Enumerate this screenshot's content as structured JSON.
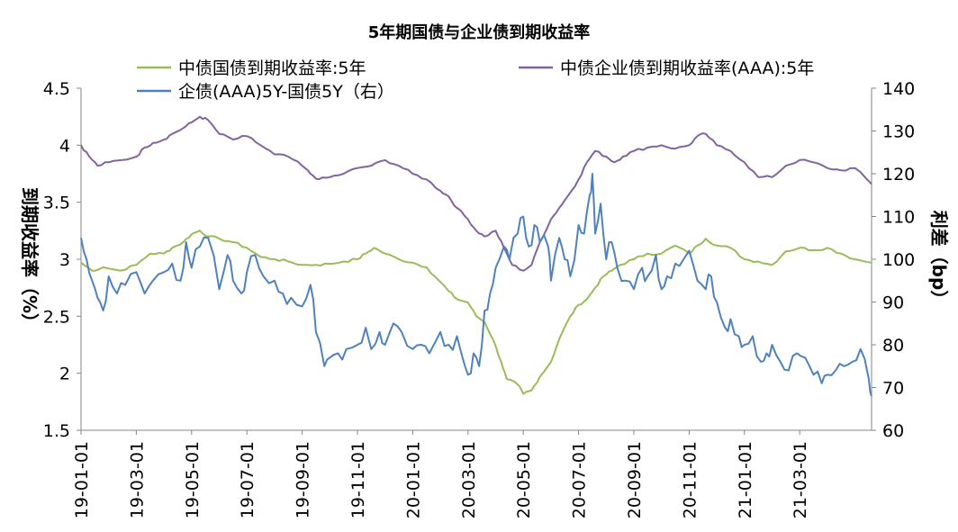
{
  "chart_data": {
    "type": "line",
    "title": "5年期国债与企业债到期收益率",
    "y_left_label": "到期收益率（%）",
    "y_right_label": "利差（bp）",
    "y_left_lim": [
      1.5,
      4.5
    ],
    "y_left_ticks": [
      "1.5",
      "2",
      "2.5",
      "3",
      "3.5",
      "4",
      "4.5"
    ],
    "y_right_lim": [
      60,
      140
    ],
    "y_right_ticks": [
      "60",
      "70",
      "80",
      "90",
      "100",
      "110",
      "120",
      "130",
      "140"
    ],
    "x_ticks": [
      "19-01-01",
      "19-03-01",
      "19-05-01",
      "19-07-01",
      "19-09-01",
      "19-11-01",
      "20-01-01",
      "20-03-01",
      "20-05-01",
      "20-07-01",
      "20-09-01",
      "20-11-01",
      "21-01-01",
      "21-03-01"
    ],
    "x_range_months": [
      0,
      28.6
    ],
    "series": [
      {
        "name": "中债国债到期收益率:5年",
        "axis": "left",
        "color": "#9BBB59",
        "points": [
          [
            0.0,
            2.97
          ],
          [
            0.4,
            2.9
          ],
          [
            0.8,
            2.93
          ],
          [
            1.4,
            2.9
          ],
          [
            2.0,
            2.95
          ],
          [
            2.5,
            3.05
          ],
          [
            3.0,
            3.05
          ],
          [
            3.3,
            3.1
          ],
          [
            3.7,
            3.15
          ],
          [
            4.0,
            3.22
          ],
          [
            4.3,
            3.25
          ],
          [
            4.6,
            3.2
          ],
          [
            5.0,
            3.18
          ],
          [
            5.5,
            3.15
          ],
          [
            6.0,
            3.1
          ],
          [
            6.5,
            3.02
          ],
          [
            7.0,
            3.0
          ],
          [
            7.5,
            2.98
          ],
          [
            8.0,
            2.95
          ],
          [
            8.5,
            2.95
          ],
          [
            9.0,
            2.96
          ],
          [
            9.5,
            2.98
          ],
          [
            10.0,
            3.0
          ],
          [
            10.3,
            3.05
          ],
          [
            10.6,
            3.1
          ],
          [
            11.0,
            3.05
          ],
          [
            11.5,
            3.0
          ],
          [
            12.0,
            2.97
          ],
          [
            12.5,
            2.93
          ],
          [
            13.0,
            2.8
          ],
          [
            13.3,
            2.72
          ],
          [
            13.6,
            2.65
          ],
          [
            14.0,
            2.62
          ],
          [
            14.3,
            2.5
          ],
          [
            14.6,
            2.45
          ],
          [
            14.9,
            2.3
          ],
          [
            15.2,
            2.1
          ],
          [
            15.4,
            1.95
          ],
          [
            15.8,
            1.9
          ],
          [
            16.0,
            1.82
          ],
          [
            16.3,
            1.85
          ],
          [
            16.6,
            1.97
          ],
          [
            17.0,
            2.1
          ],
          [
            17.3,
            2.3
          ],
          [
            17.7,
            2.5
          ],
          [
            18.0,
            2.6
          ],
          [
            18.3,
            2.65
          ],
          [
            18.6,
            2.75
          ],
          [
            18.9,
            2.85
          ],
          [
            19.2,
            2.9
          ],
          [
            19.5,
            2.95
          ],
          [
            20.0,
            3.0
          ],
          [
            20.5,
            3.05
          ],
          [
            21.0,
            3.05
          ],
          [
            21.5,
            3.12
          ],
          [
            22.0,
            3.05
          ],
          [
            22.3,
            3.12
          ],
          [
            22.6,
            3.18
          ],
          [
            23.0,
            3.12
          ],
          [
            23.5,
            3.1
          ],
          [
            24.0,
            3.0
          ],
          [
            24.5,
            2.98
          ],
          [
            25.0,
            2.95
          ],
          [
            25.5,
            3.07
          ],
          [
            26.0,
            3.1
          ],
          [
            26.5,
            3.08
          ],
          [
            27.0,
            3.1
          ],
          [
            27.5,
            3.05
          ],
          [
            28.0,
            3.0
          ],
          [
            28.6,
            2.97
          ]
        ]
      },
      {
        "name": "中债企业债到期收益率(AAA):5年",
        "axis": "left",
        "color": "#8064A2",
        "points": [
          [
            0.0,
            4.0
          ],
          [
            0.3,
            3.9
          ],
          [
            0.6,
            3.82
          ],
          [
            1.0,
            3.85
          ],
          [
            1.5,
            3.87
          ],
          [
            2.0,
            3.9
          ],
          [
            2.3,
            3.98
          ],
          [
            2.6,
            4.02
          ],
          [
            3.0,
            4.05
          ],
          [
            3.3,
            4.1
          ],
          [
            3.7,
            4.15
          ],
          [
            4.0,
            4.2
          ],
          [
            4.3,
            4.25
          ],
          [
            4.6,
            4.22
          ],
          [
            5.0,
            4.1
          ],
          [
            5.5,
            4.05
          ],
          [
            6.0,
            4.08
          ],
          [
            6.5,
            4.0
          ],
          [
            7.0,
            3.92
          ],
          [
            7.5,
            3.9
          ],
          [
            8.0,
            3.82
          ],
          [
            8.3,
            3.75
          ],
          [
            8.6,
            3.7
          ],
          [
            9.0,
            3.72
          ],
          [
            9.5,
            3.75
          ],
          [
            10.0,
            3.8
          ],
          [
            10.5,
            3.82
          ],
          [
            11.0,
            3.87
          ],
          [
            11.5,
            3.82
          ],
          [
            12.0,
            3.75
          ],
          [
            12.5,
            3.7
          ],
          [
            13.0,
            3.6
          ],
          [
            13.3,
            3.55
          ],
          [
            13.6,
            3.45
          ],
          [
            14.0,
            3.35
          ],
          [
            14.3,
            3.25
          ],
          [
            14.6,
            3.2
          ],
          [
            15.0,
            3.25
          ],
          [
            15.3,
            3.1
          ],
          [
            15.6,
            2.95
          ],
          [
            16.0,
            2.9
          ],
          [
            16.3,
            2.95
          ],
          [
            16.6,
            3.15
          ],
          [
            17.0,
            3.35
          ],
          [
            17.3,
            3.45
          ],
          [
            17.6,
            3.55
          ],
          [
            18.0,
            3.7
          ],
          [
            18.3,
            3.85
          ],
          [
            18.6,
            3.95
          ],
          [
            19.0,
            3.9
          ],
          [
            19.3,
            3.85
          ],
          [
            19.6,
            3.9
          ],
          [
            20.0,
            3.95
          ],
          [
            20.5,
            3.98
          ],
          [
            21.0,
            4.0
          ],
          [
            21.5,
            3.97
          ],
          [
            22.0,
            4.0
          ],
          [
            22.3,
            4.08
          ],
          [
            22.6,
            4.1
          ],
          [
            23.0,
            4.0
          ],
          [
            23.5,
            3.95
          ],
          [
            24.0,
            3.85
          ],
          [
            24.5,
            3.72
          ],
          [
            25.0,
            3.72
          ],
          [
            25.5,
            3.82
          ],
          [
            26.0,
            3.87
          ],
          [
            26.5,
            3.85
          ],
          [
            27.0,
            3.8
          ],
          [
            27.5,
            3.78
          ],
          [
            28.0,
            3.8
          ],
          [
            28.6,
            3.66
          ]
        ]
      },
      {
        "name": "企债(AAA)5Y-国债5Y（右）",
        "axis": "right",
        "color": "#4F81BD",
        "points": [
          [
            0.0,
            105
          ],
          [
            0.2,
            100
          ],
          [
            0.4,
            95
          ],
          [
            0.6,
            91
          ],
          [
            0.8,
            88
          ],
          [
            1.0,
            96
          ],
          [
            1.3,
            92
          ],
          [
            1.6,
            94
          ],
          [
            2.0,
            97
          ],
          [
            2.3,
            92
          ],
          [
            2.6,
            95
          ],
          [
            3.0,
            97
          ],
          [
            3.3,
            99
          ],
          [
            3.6,
            95
          ],
          [
            3.8,
            104
          ],
          [
            4.0,
            98
          ],
          [
            4.3,
            103
          ],
          [
            4.6,
            105
          ],
          [
            5.0,
            93
          ],
          [
            5.3,
            101
          ],
          [
            5.5,
            95
          ],
          [
            5.8,
            92
          ],
          [
            6.0,
            97
          ],
          [
            6.3,
            101
          ],
          [
            6.6,
            96
          ],
          [
            7.0,
            95
          ],
          [
            7.3,
            92
          ],
          [
            7.6,
            91
          ],
          [
            8.0,
            89
          ],
          [
            8.3,
            94
          ],
          [
            8.5,
            83
          ],
          [
            8.8,
            75
          ],
          [
            9.0,
            77
          ],
          [
            9.3,
            78
          ],
          [
            9.6,
            79
          ],
          [
            10.0,
            80
          ],
          [
            10.3,
            84
          ],
          [
            10.5,
            79
          ],
          [
            10.8,
            83
          ],
          [
            11.0,
            80
          ],
          [
            11.3,
            85
          ],
          [
            11.6,
            83
          ],
          [
            12.0,
            79
          ],
          [
            12.3,
            80
          ],
          [
            12.6,
            78
          ],
          [
            13.0,
            83
          ],
          [
            13.3,
            80
          ],
          [
            13.6,
            82
          ],
          [
            13.8,
            77
          ],
          [
            14.0,
            73
          ],
          [
            14.2,
            78
          ],
          [
            14.4,
            75
          ],
          [
            14.6,
            88
          ],
          [
            14.8,
            92
          ],
          [
            15.0,
            98
          ],
          [
            15.3,
            103
          ],
          [
            15.5,
            100
          ],
          [
            15.8,
            106
          ],
          [
            16.0,
            110
          ],
          [
            16.2,
            103
          ],
          [
            16.4,
            108
          ],
          [
            16.6,
            104
          ],
          [
            16.9,
            103
          ],
          [
            17.0,
            95
          ],
          [
            17.3,
            105
          ],
          [
            17.5,
            100
          ],
          [
            17.7,
            96
          ],
          [
            18.0,
            108
          ],
          [
            18.2,
            106
          ],
          [
            18.4,
            115
          ],
          [
            18.5,
            120
          ],
          [
            18.6,
            106
          ],
          [
            18.8,
            113
          ],
          [
            19.0,
            100
          ],
          [
            19.2,
            104
          ],
          [
            19.4,
            98
          ],
          [
            19.7,
            95
          ],
          [
            20.0,
            93
          ],
          [
            20.3,
            98
          ],
          [
            20.5,
            96
          ],
          [
            20.8,
            101
          ],
          [
            21.0,
            93
          ],
          [
            21.2,
            96
          ],
          [
            21.5,
            99
          ],
          [
            21.8,
            100
          ],
          [
            22.0,
            102
          ],
          [
            22.3,
            95
          ],
          [
            22.6,
            93
          ],
          [
            22.8,
            96
          ],
          [
            23.0,
            90
          ],
          [
            23.3,
            84
          ],
          [
            23.5,
            86
          ],
          [
            23.8,
            82
          ],
          [
            24.0,
            80
          ],
          [
            24.3,
            82
          ],
          [
            24.6,
            76
          ],
          [
            24.8,
            78
          ],
          [
            25.0,
            80
          ],
          [
            25.3,
            76
          ],
          [
            25.6,
            74
          ],
          [
            25.9,
            78
          ],
          [
            26.2,
            77
          ],
          [
            26.5,
            73
          ],
          [
            26.8,
            71
          ],
          [
            27.0,
            73
          ],
          [
            27.3,
            74
          ],
          [
            27.6,
            75
          ],
          [
            27.9,
            76
          ],
          [
            28.2,
            79
          ],
          [
            28.5,
            72
          ],
          [
            28.6,
            68
          ]
        ]
      }
    ]
  }
}
